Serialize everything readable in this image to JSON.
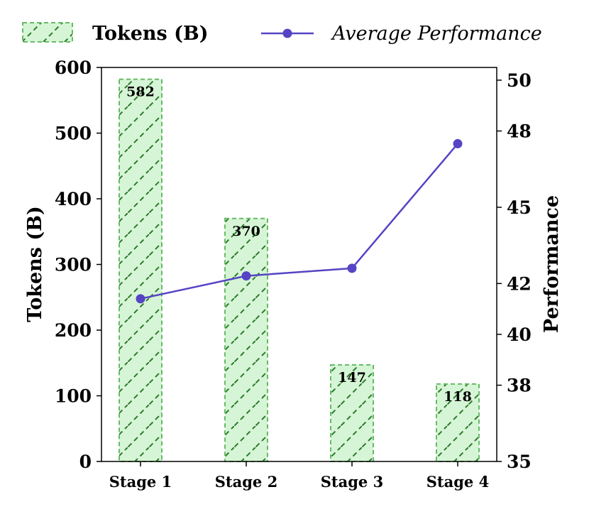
{
  "chart_data": {
    "type": "bar",
    "categories": [
      "Stage 1",
      "Stage 2",
      "Stage 3",
      "Stage 4"
    ],
    "series": [
      {
        "name": "Tokens (B)",
        "type": "bar",
        "axis": "left",
        "values": [
          582,
          370,
          147,
          118
        ],
        "data_labels": [
          "582",
          "370",
          "147",
          "118"
        ],
        "color": "#d6f5d6",
        "edge_color": "#66bb66",
        "hatch_color": "#2a7a2a"
      },
      {
        "name": "Average Performance",
        "type": "line",
        "axis": "right",
        "values": [
          41.4,
          42.3,
          42.6,
          47.5
        ],
        "color": "#5544c4"
      }
    ],
    "ylabel": "Tokens (B)",
    "ylabel_right": "Performance",
    "ylim": [
      0,
      600
    ],
    "ylim_right": [
      35,
      50.5
    ],
    "yticks": [
      0,
      100,
      200,
      300,
      400,
      500,
      600
    ],
    "yticks_right": [
      35,
      38,
      40,
      42,
      45,
      48,
      50
    ],
    "legend_placement": "top",
    "grid": false
  }
}
